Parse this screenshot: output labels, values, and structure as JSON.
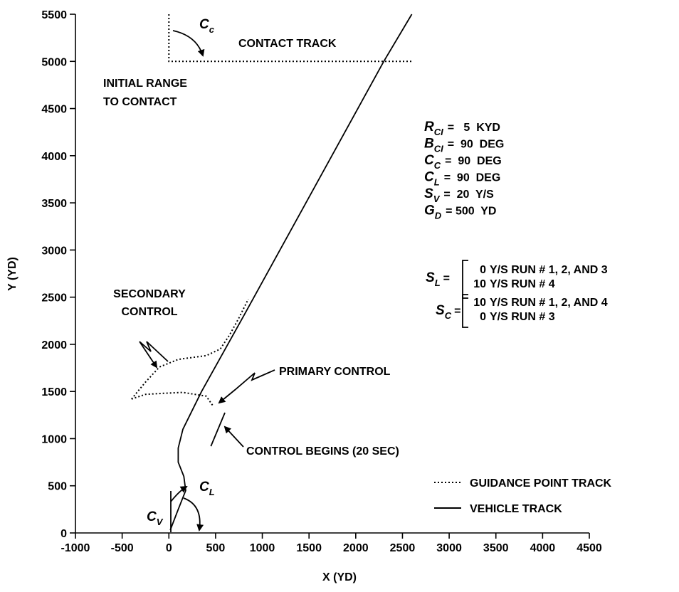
{
  "chart_data": {
    "type": "line",
    "xlabel": "X (YD)",
    "ylabel": "Y (YD)",
    "xlim": [
      -1000,
      4500
    ],
    "ylim": [
      0,
      5500
    ],
    "xticks": [
      -1000,
      -500,
      0,
      500,
      1000,
      1500,
      2000,
      2500,
      3000,
      3500,
      4000,
      4500
    ],
    "yticks": [
      0,
      500,
      1000,
      1500,
      2000,
      2500,
      3000,
      3500,
      4000,
      4500,
      5000,
      5500
    ],
    "legend": "lower right",
    "series": [
      {
        "name": "GUIDANCE POINT TRACK",
        "color": "#000000",
        "style": "dotted",
        "x": [
          -400,
          -250,
          -100,
          100,
          400,
          550,
          650,
          750,
          850,
          null,
          -400,
          -250,
          -60,
          150,
          400,
          470
        ],
        "values": [
          1420,
          1600,
          1760,
          1840,
          1880,
          1950,
          2100,
          2280,
          2480,
          null,
          1420,
          1470,
          1480,
          1490,
          1450,
          1350
        ]
      },
      {
        "name": "VEHICLE TRACK",
        "color": "#000000",
        "style": "solid",
        "x": [
          15,
          100,
          180,
          160,
          100,
          100,
          150,
          250,
          350,
          800,
          1300,
          1800,
          2300,
          2600
        ],
        "values": [
          30,
          250,
          450,
          600,
          750,
          900,
          1100,
          1300,
          1500,
          2300,
          3200,
          4100,
          5000,
          5500
        ]
      }
    ],
    "contact_track": {
      "x": [
        0,
        0,
        2600
      ],
      "values": [
        5500,
        5000,
        5000
      ]
    },
    "control_begins_marker": {
      "x": [
        450,
        600
      ],
      "values": [
        920,
        1275
      ]
    },
    "annotations": {
      "contact_track": "CONTACT TRACK",
      "initial_range": [
        "INITIAL RANGE",
        "TO CONTACT"
      ],
      "secondary_control": [
        "SECONDARY",
        "CONTROL"
      ],
      "primary_control": "PRIMARY CONTROL",
      "control_begins": "CONTROL BEGINS (20 SEC)",
      "c_c": {
        "sym": "C",
        "sub": "c"
      },
      "c_v": {
        "sym": "C",
        "sub": "V"
      },
      "c_l": {
        "sym": "C",
        "sub": "L"
      }
    },
    "parameters": [
      {
        "sym": "R",
        "sub": "CI",
        "text": "=   5  KYD"
      },
      {
        "sym": "B",
        "sub": "CI",
        "text": "=  90  DEG"
      },
      {
        "sym": "C",
        "sub": "C",
        "text": "=  90  DEG"
      },
      {
        "sym": "C",
        "sub": "L",
        "text": "=  90  DEG"
      },
      {
        "sym": "S",
        "sub": "V",
        "text": "=  20  Y/S"
      },
      {
        "sym": "G",
        "sub": "D",
        "text": "= 500  YD"
      }
    ],
    "runs": [
      {
        "sym": "S",
        "sub": "L",
        "eq": "=",
        "lines": [
          {
            "num": "0",
            "text": "Y/S RUN # 1, 2, AND 3"
          },
          {
            "num": "10",
            "text": "Y/S RUN # 4"
          }
        ]
      },
      {
        "sym": "S",
        "sub": "C",
        "eq": "=",
        "lines": [
          {
            "num": "10",
            "text": "Y/S RUN # 1, 2, AND 4"
          },
          {
            "num": "0",
            "text": "Y/S RUN # 3"
          }
        ]
      }
    ]
  }
}
